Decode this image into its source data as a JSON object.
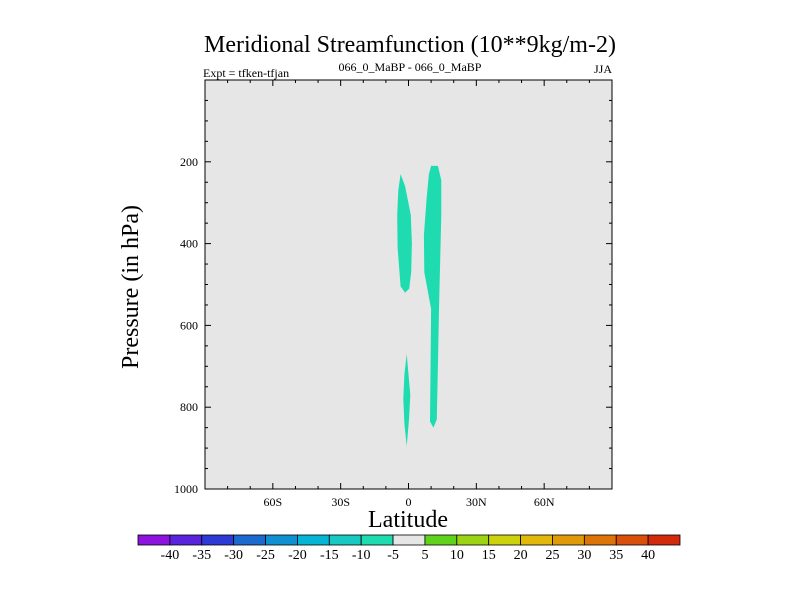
{
  "chart_data": {
    "type": "contour",
    "title": "Meridional Streamfunction (10**9kg/m-2)",
    "subtitle_left": "Expt = tfken-tfjan",
    "subtitle_center": "066_0_MaBP - 066_0_MaBP",
    "subtitle_right": "JJA",
    "xlabel": "Latitude",
    "ylabel": "Pressure (in hPa)",
    "xlim": [
      -90,
      90
    ],
    "ylim": [
      1000,
      0
    ],
    "x_ticks": [
      {
        "value": -60,
        "label": "60S"
      },
      {
        "value": -30,
        "label": "30S"
      },
      {
        "value": 0,
        "label": "0"
      },
      {
        "value": 30,
        "label": "30N"
      },
      {
        "value": 60,
        "label": "60N"
      }
    ],
    "y_ticks": [
      {
        "value": 200,
        "label": "200"
      },
      {
        "value": 400,
        "label": "400"
      },
      {
        "value": 600,
        "label": "600"
      },
      {
        "value": 800,
        "label": "800"
      },
      {
        "value": 1000,
        "label": "1000"
      }
    ],
    "background_fill": "#e6e6e6",
    "regions": [
      {
        "level": "-10 to -5",
        "color": "#1edcb0",
        "points": [
          [
            -3.5,
            230
          ],
          [
            -1.5,
            260
          ],
          [
            1,
            330
          ],
          [
            1.5,
            400
          ],
          [
            1.2,
            470
          ],
          [
            0.3,
            510
          ],
          [
            -1.5,
            520
          ],
          [
            -3.5,
            505
          ],
          [
            -4.8,
            410
          ],
          [
            -5,
            330
          ],
          [
            -4.5,
            270
          ]
        ]
      },
      {
        "level": "-10 to -5",
        "color": "#1edcb0",
        "points": [
          [
            10,
            210
          ],
          [
            13,
            210
          ],
          [
            14.5,
            245
          ],
          [
            14.5,
            330
          ],
          [
            13.5,
            560
          ],
          [
            13,
            700
          ],
          [
            12.5,
            830
          ],
          [
            11,
            850
          ],
          [
            9.5,
            835
          ],
          [
            9.7,
            740
          ],
          [
            10,
            560
          ],
          [
            7,
            470
          ],
          [
            6.8,
            380
          ],
          [
            8,
            290
          ],
          [
            9,
            230
          ]
        ]
      },
      {
        "level": "-10 to -5",
        "color": "#1edcb0",
        "points": [
          [
            -0.8,
            670
          ],
          [
            0.8,
            770
          ],
          [
            0.2,
            830
          ],
          [
            -0.8,
            895
          ],
          [
            -1.8,
            840
          ],
          [
            -2.3,
            780
          ],
          [
            -1.8,
            720
          ]
        ]
      }
    ],
    "colorbar": {
      "labels": [
        "-40",
        "-35",
        "-30",
        "-25",
        "-20",
        "-15",
        "-10",
        "-5",
        "5",
        "10",
        "15",
        "20",
        "25",
        "30",
        "35",
        "40"
      ],
      "colors": [
        "#8d14de",
        "#5a23dc",
        "#2d3ad6",
        "#1a6ad0",
        "#0f90d2",
        "#06b4d6",
        "#17c9c2",
        "#1edcb0",
        "#e6e6e6",
        "#5fd21c",
        "#9cd414",
        "#ccd20c",
        "#e2b80a",
        "#e09a08",
        "#dc7408",
        "#d8500a",
        "#d42a0c"
      ]
    }
  }
}
